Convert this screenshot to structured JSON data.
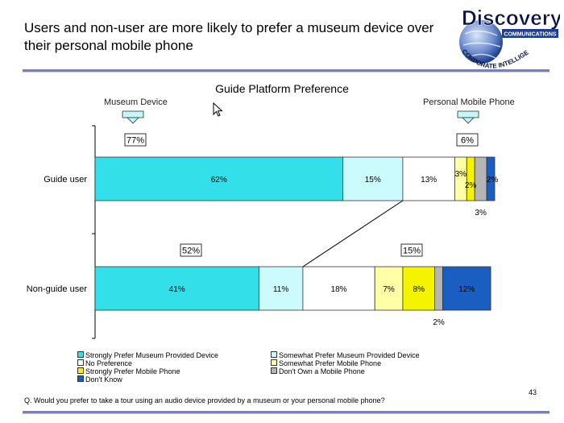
{
  "slide": {
    "title": "Users and non-user are more likely to prefer a museum device over their personal mobile phone",
    "question": "Q. Would you prefer to take a tour using an audio device provided by a museum or your personal mobile phone?",
    "page_number": "43"
  },
  "logo": {
    "brand": "Discovery",
    "band": "COMMUNICATIONS",
    "arc_text": "CORPORATE INTELLIGENCE GROUP"
  },
  "chart_data": {
    "type": "bar",
    "orientation": "horizontal",
    "stacked": true,
    "title": "Guide Platform Preference",
    "left_label": "Museum Device",
    "right_label": "Personal Mobile Phone",
    "categories": [
      "Guide user",
      "Non-guide user"
    ],
    "series": [
      {
        "name": "Strongly Prefer Museum Provided Device",
        "color": "#33e0ea",
        "values": [
          62,
          41
        ]
      },
      {
        "name": "Somewhat Prefer Museum Provided Device",
        "color": "#ccfbfd",
        "values": [
          15,
          11
        ]
      },
      {
        "name": "No Preference",
        "color": "#ffffff",
        "values": [
          13,
          18
        ]
      },
      {
        "name": "Somewhat Prefer Mobile Phone",
        "color": "#ffffa6",
        "values": [
          3,
          7
        ]
      },
      {
        "name": "Strongly Prefer Mobile Phone",
        "color": "#f4f400",
        "values": [
          2,
          8
        ]
      },
      {
        "name": "Don't Own a Mobile Phone",
        "color": "#b5b5b5",
        "values": [
          3,
          2
        ]
      },
      {
        "name": "Don't Know",
        "color": "#1a5ec2",
        "values": [
          2,
          12
        ]
      }
    ],
    "segment_labels": [
      [
        "62%",
        "15%",
        "13%",
        "3%",
        "2%",
        "3%",
        "2%"
      ],
      [
        "41%",
        "11%",
        "18%",
        "7%",
        "8%",
        "2%",
        "12%"
      ]
    ],
    "museum_totals": [
      "77%",
      "52%"
    ],
    "phone_totals": [
      "6%",
      "15%"
    ],
    "legend_position": "bottom"
  }
}
